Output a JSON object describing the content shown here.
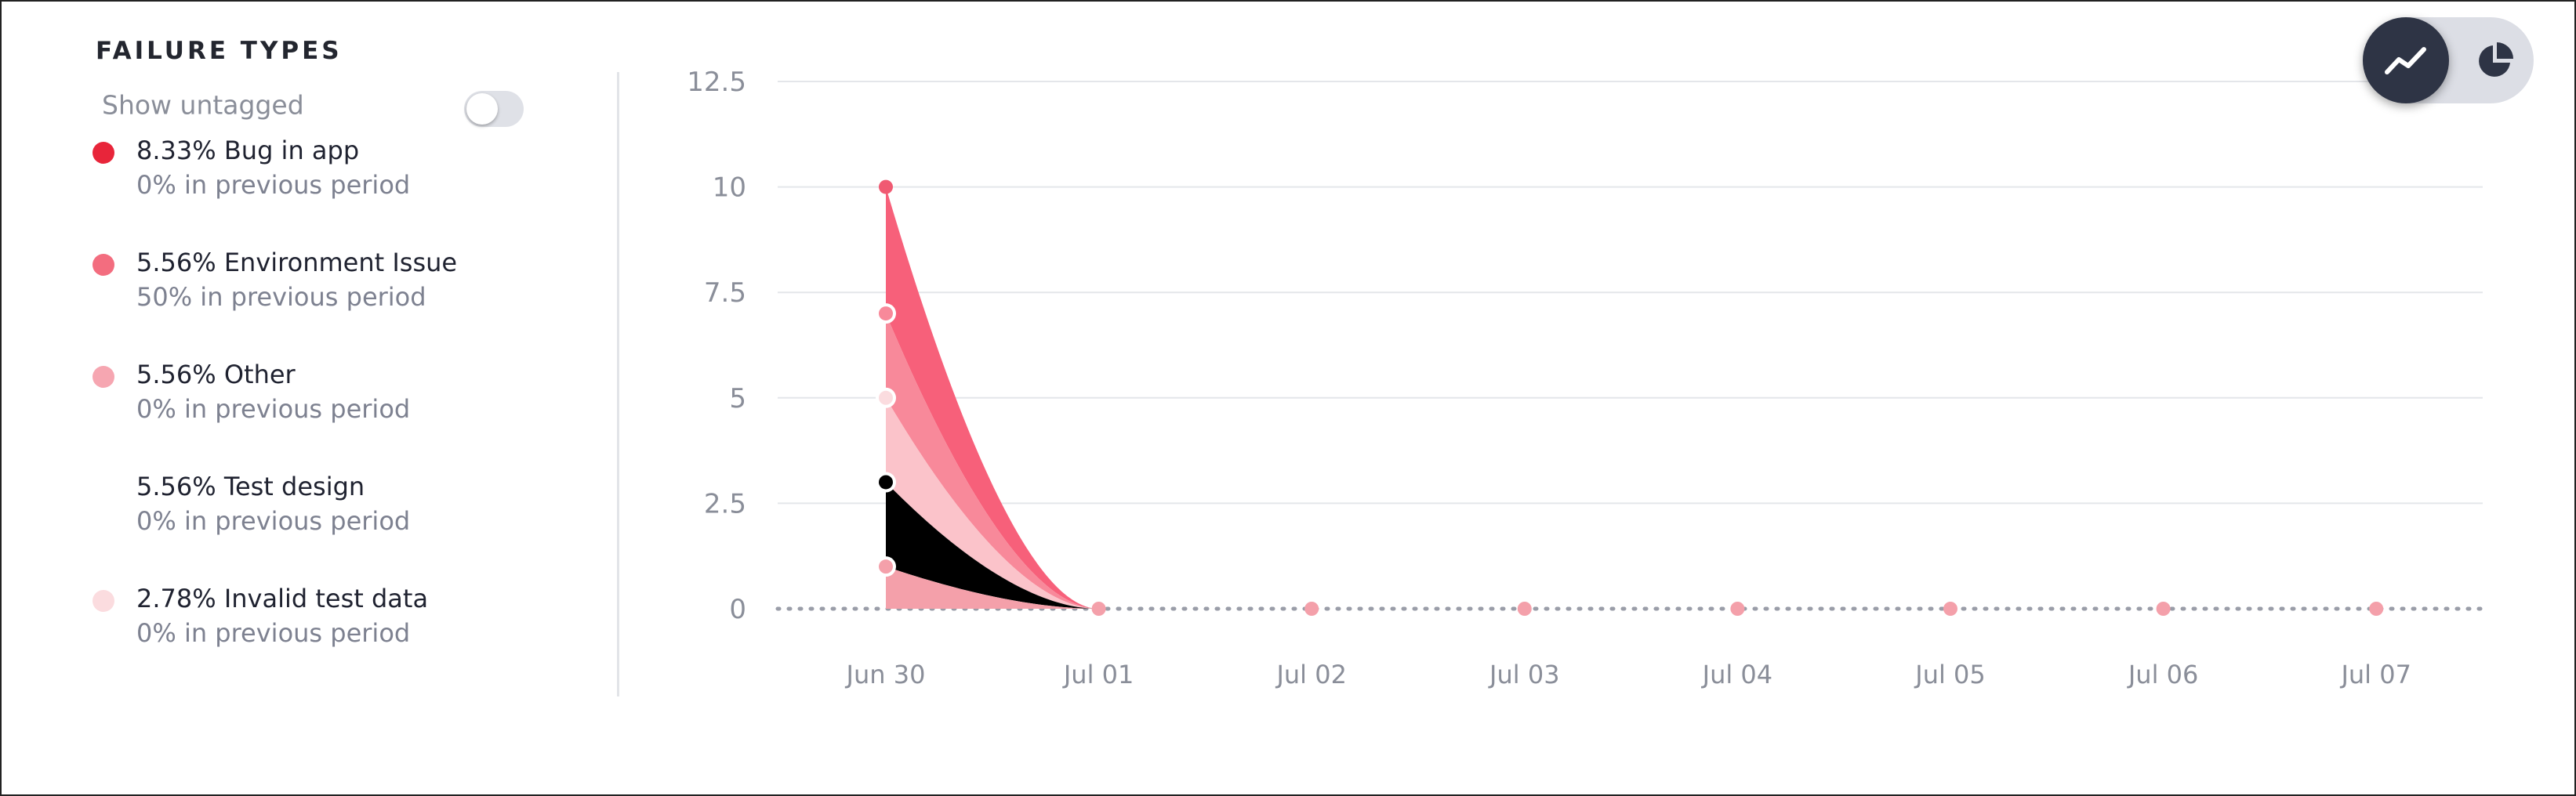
{
  "panel": {
    "title": "FAILURE TYPES",
    "show_untagged_label": "Show untagged",
    "show_untagged_enabled": false
  },
  "legend": [
    {
      "label": "8.33% Bug in app",
      "previous": "0% in previous period",
      "color": "#e8253a"
    },
    {
      "label": "5.56% Environment Issue",
      "previous": "50% in previous period",
      "color": "#f36d7f"
    },
    {
      "label": "5.56% Other",
      "previous": "0% in previous period",
      "color": "#f6a6b1"
    },
    {
      "label": "5.56% Test design",
      "previous": "0% in previous period",
      "color": "#ffffff"
    },
    {
      "label": "2.78% Invalid test data",
      "previous": "0% in previous period",
      "color": "#fbdcdf"
    }
  ],
  "view_toggle": {
    "active": "line-chart-icon",
    "inactive": "pie-chart-icon"
  },
  "chart_data": {
    "type": "area",
    "stacked": true,
    "categories": [
      "Jun 30",
      "Jul 01",
      "Jul 02",
      "Jul 03",
      "Jul 04",
      "Jul 05",
      "Jul 06",
      "Jul 07"
    ],
    "y_ticks": [
      "0",
      "2.5",
      "5",
      "7.5",
      "10",
      "12.5"
    ],
    "ylim": [
      0,
      12.5
    ],
    "grid": true,
    "series": [
      {
        "values": [
          1,
          0,
          0,
          0,
          0,
          0,
          0,
          0
        ],
        "color": "#f4a0aa"
      },
      {
        "values": [
          2,
          0,
          0,
          0,
          0,
          0,
          0,
          0
        ],
        "color": "#000000"
      },
      {
        "values": [
          2,
          0,
          0,
          0,
          0,
          0,
          0,
          0
        ],
        "color": "#fbc3ca"
      },
      {
        "values": [
          2,
          0,
          0,
          0,
          0,
          0,
          0,
          0
        ],
        "color": "#f8899a"
      },
      {
        "values": [
          3,
          0,
          0,
          0,
          0,
          0,
          0,
          0
        ],
        "color": "#f7607a"
      }
    ],
    "marker_colors": [
      "#f4a0aa",
      "#000000",
      "#fbdcdf",
      "#f8899a",
      "#f05a72"
    ]
  }
}
